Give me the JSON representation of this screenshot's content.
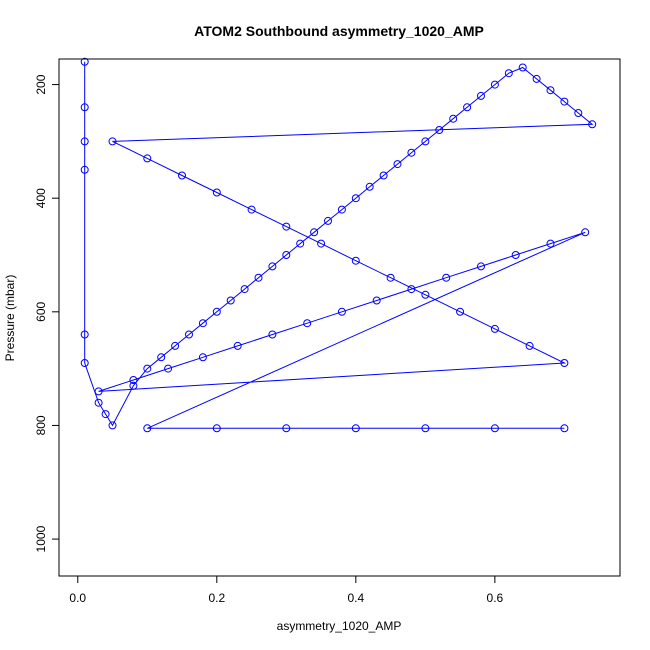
{
  "chart_data": {
    "type": "scatter",
    "title": "ATOM2 Southbound asymmetry_1020_AMP",
    "xlabel": "asymmetry_1020_AMP",
    "ylabel": "Pressure (mbar)",
    "xlim": [
      -0.027,
      0.78
    ],
    "ylim": [
      1065,
      155
    ],
    "y_reversed": true,
    "grid": false,
    "legend": "none",
    "x_ticks": [
      "0.0",
      "0.2",
      "0.4",
      "0.6"
    ],
    "x_tick_values": [
      0.0,
      0.2,
      0.4,
      0.6
    ],
    "y_ticks": [
      "200",
      "400",
      "600",
      "800",
      "1000"
    ],
    "y_tick_values": [
      200,
      400,
      600,
      800,
      1000
    ],
    "series": [
      {
        "color": "#0000ff",
        "marker": "open-circle",
        "connected": true,
        "x": [
          0.01,
          0.01,
          0.01,
          0.01,
          0.01,
          0.01,
          0.03,
          0.04,
          0.05,
          0.08,
          0.1,
          0.12,
          0.14,
          0.16,
          0.18,
          0.2,
          0.22,
          0.24,
          0.26,
          0.28,
          0.3,
          0.32,
          0.34,
          0.36,
          0.38,
          0.4,
          0.42,
          0.44,
          0.46,
          0.48,
          0.5,
          0.52,
          0.54,
          0.56,
          0.58,
          0.6,
          0.62,
          0.64,
          0.66,
          0.68,
          0.7,
          0.72,
          0.74,
          0.05,
          0.1,
          0.15,
          0.2,
          0.25,
          0.3,
          0.35,
          0.4,
          0.45,
          0.5,
          0.55,
          0.6,
          0.65,
          0.7,
          0.03,
          0.08,
          0.13,
          0.18,
          0.23,
          0.28,
          0.33,
          0.38,
          0.43,
          0.48,
          0.53,
          0.58,
          0.63,
          0.68,
          0.73,
          0.1,
          0.2,
          0.3,
          0.4,
          0.5,
          0.6,
          0.7
        ],
        "y": [
          160,
          240,
          300,
          350,
          640,
          690,
          760,
          780,
          800,
          730,
          700,
          680,
          660,
          640,
          620,
          600,
          580,
          560,
          540,
          520,
          500,
          480,
          460,
          440,
          420,
          400,
          380,
          360,
          340,
          320,
          300,
          280,
          260,
          240,
          220,
          200,
          180,
          170,
          190,
          210,
          230,
          250,
          270,
          300,
          330,
          360,
          390,
          420,
          450,
          480,
          510,
          540,
          570,
          600,
          630,
          660,
          690,
          740,
          720,
          700,
          680,
          660,
          640,
          620,
          600,
          580,
          560,
          540,
          520,
          500,
          480,
          460,
          805,
          805,
          805,
          805,
          805,
          805,
          805
        ]
      }
    ]
  }
}
